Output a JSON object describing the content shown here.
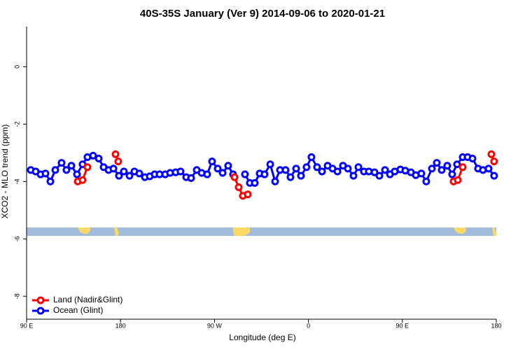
{
  "chart_data": {
    "type": "line",
    "title": "40S-35S January (Ver 9)   2014-09-06 to 2020-01-21",
    "x_label": "Longitude (deg E)",
    "y_label": "XCO2 - MLO trend (ppm)",
    "xlim": [
      90,
      540
    ],
    "ylim": [
      -8.8,
      1.4
    ],
    "xticks": [
      {
        "value": 90,
        "label": "90 E"
      },
      {
        "value": 180,
        "label": "180"
      },
      {
        "value": 270,
        "label": "90 W"
      },
      {
        "value": 360,
        "label": "0"
      },
      {
        "value": 450,
        "label": "90 E"
      },
      {
        "value": 540,
        "label": "180"
      }
    ],
    "yticks": [
      0,
      -2,
      -4,
      -6,
      -8
    ],
    "legend": "bottom-left",
    "series": [
      {
        "name": "Land (Nadir&Glint)",
        "color": "#ff0000",
        "x": [
          139.0,
          143.6,
          148.3,
          156,
          175.2,
          177.8,
          255,
          289.2,
          293.2,
          297.2,
          301.9,
          470,
          499.1,
          503.1,
          507.8,
          520,
          535.3,
          537.9
        ],
        "values": [
          -4.0,
          -3.95,
          -3.5,
          null,
          -3.05,
          -3.3,
          null,
          -3.85,
          -4.2,
          -4.5,
          -4.45,
          null,
          -4.0,
          -3.95,
          -3.5,
          null,
          -3.05,
          -3.3
        ]
      },
      {
        "name": "Ocean (Glint)",
        "color": "#0000ff",
        "x": [
          94.0,
          98.7,
          103.4,
          108.1,
          112.8,
          117.5,
          123.5,
          128.2,
          132.9,
          138.3,
          143.6,
          148.3,
          153.7,
          159.1,
          163.8,
          168.5,
          173.2,
          178.5,
          183.2,
          188.6,
          193.3,
          198.0,
          203.3,
          208.0,
          212.7,
          217.4,
          222.8,
          227.5,
          232.8,
          237.5,
          242.9,
          247.6,
          253.0,
          257.7,
          263.0,
          267.7,
          273.1,
          277.8,
          283.1,
          287.8,
          293,
          299.2,
          303.9,
          308.6,
          313.3,
          318.0,
          323.4,
          328.1,
          332.8,
          338.1,
          342.8,
          348.2,
          352.9,
          358.2,
          362.9,
          368.3,
          373.0,
          378.4,
          383.1,
          387.8,
          393.1,
          397.8,
          403.2,
          407.9,
          413.2,
          417.9,
          423.3,
          428.0,
          433.4,
          438.1,
          442.7,
          448.1,
          452.8,
          458.2,
          462.9,
          468.2,
          472.9,
          478.3,
          483.0,
          487.7,
          493.0,
          497.7,
          502.4,
          507.8,
          512.5,
          517.2,
          522.5,
          527.2,
          532.6,
          537.9
        ],
        "values": [
          -3.6,
          -3.65,
          -3.75,
          -3.72,
          -4.0,
          -3.6,
          -3.35,
          -3.6,
          -3.45,
          -3.75,
          -3.4,
          -3.15,
          -3.1,
          -3.2,
          -3.5,
          -3.6,
          -3.55,
          -3.8,
          -3.65,
          -3.8,
          -3.65,
          -3.72,
          -3.85,
          -3.82,
          -3.75,
          -3.75,
          -3.75,
          -3.7,
          -3.68,
          -3.65,
          -3.85,
          -3.88,
          -3.6,
          -3.7,
          -3.75,
          -3.3,
          -3.55,
          -3.7,
          -3.45,
          -3.75,
          null,
          -3.75,
          -4.05,
          -4.05,
          -3.72,
          -3.75,
          -3.4,
          -4.0,
          -3.6,
          -3.6,
          -3.85,
          -3.55,
          -3.8,
          -3.5,
          -3.15,
          -3.5,
          -3.65,
          -3.45,
          -3.55,
          -3.65,
          -3.45,
          -3.55,
          -3.8,
          -3.5,
          -3.65,
          -3.65,
          -3.68,
          -3.8,
          -3.6,
          -3.75,
          -3.65,
          -3.58,
          -3.62,
          -3.68,
          -3.78,
          -3.72,
          -4.0,
          -3.55,
          -3.35,
          -3.6,
          -3.45,
          -3.75,
          -3.4,
          -3.15,
          -3.15,
          -3.2,
          -3.55,
          -3.6,
          -3.55,
          -3.8
        ]
      }
    ]
  }
}
